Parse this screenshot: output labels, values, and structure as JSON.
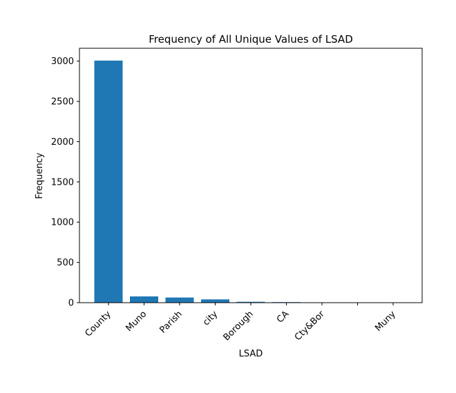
{
  "chart_data": {
    "type": "bar",
    "title": "Frequency of All Unique Values of LSAD",
    "xlabel": "LSAD",
    "ylabel": "Frequency",
    "categories": [
      "County",
      "Muno",
      "Parish",
      "city",
      "Borough",
      "CA",
      "Cty&Bor",
      "",
      "Muny"
    ],
    "values": [
      3007,
      78,
      64,
      41,
      11,
      7,
      1,
      1,
      1
    ],
    "ylim": [
      0,
      3160
    ],
    "yticks": [
      0,
      500,
      1000,
      1500,
      2000,
      2500,
      3000
    ],
    "bar_color": "#1f77b4",
    "grid": false,
    "legend": "none"
  }
}
